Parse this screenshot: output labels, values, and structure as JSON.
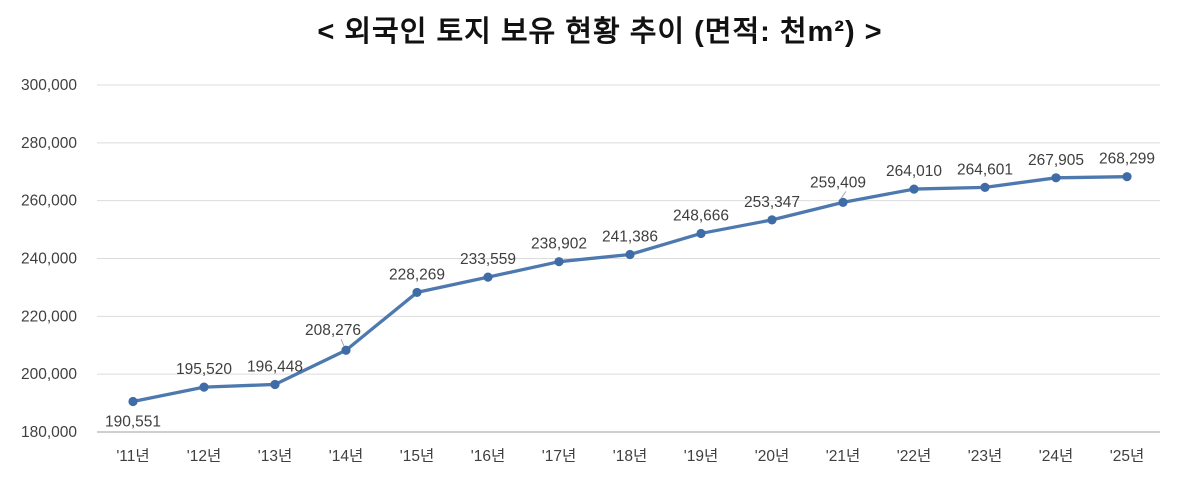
{
  "chart_data": {
    "type": "line",
    "title": "< 외국인 토지 보유 현황 추이 (면적: 천m²) >",
    "categories": [
      "'11년",
      "'12년",
      "'13년",
      "'14년",
      "'15년",
      "'16년",
      "'17년",
      "'18년",
      "'19년",
      "'20년",
      "'21년",
      "'22년",
      "'23년",
      "'24년",
      "'25년"
    ],
    "values": [
      190551,
      195520,
      196448,
      208276,
      228269,
      233559,
      238902,
      241386,
      248666,
      253347,
      259409,
      264010,
      264601,
      267905,
      268299
    ],
    "data_labels": [
      "190,551",
      "195,520",
      "196,448",
      "208,276",
      "228,269",
      "233,559",
      "238,902",
      "241,386",
      "248,666",
      "253,347",
      "259,409",
      "264,010",
      "264,601",
      "267,905",
      "268,299"
    ],
    "ylim": [
      180000,
      300000
    ],
    "ytick_step": 20000,
    "ytick_labels": [
      "180,000",
      "200,000",
      "220,000",
      "240,000",
      "260,000",
      "280,000",
      "300,000"
    ],
    "xlabel": "",
    "ylabel": "",
    "grid": "horizontal",
    "legend": "none",
    "colors": {
      "line": "#4d79ae",
      "marker": "#3f6ca6",
      "gridline": "#dcdcdc",
      "axis_line": "#bfbfbf",
      "leader_line": "#a6a6a6",
      "label_text": "#3f3f3f",
      "title_text": "#111111"
    }
  }
}
